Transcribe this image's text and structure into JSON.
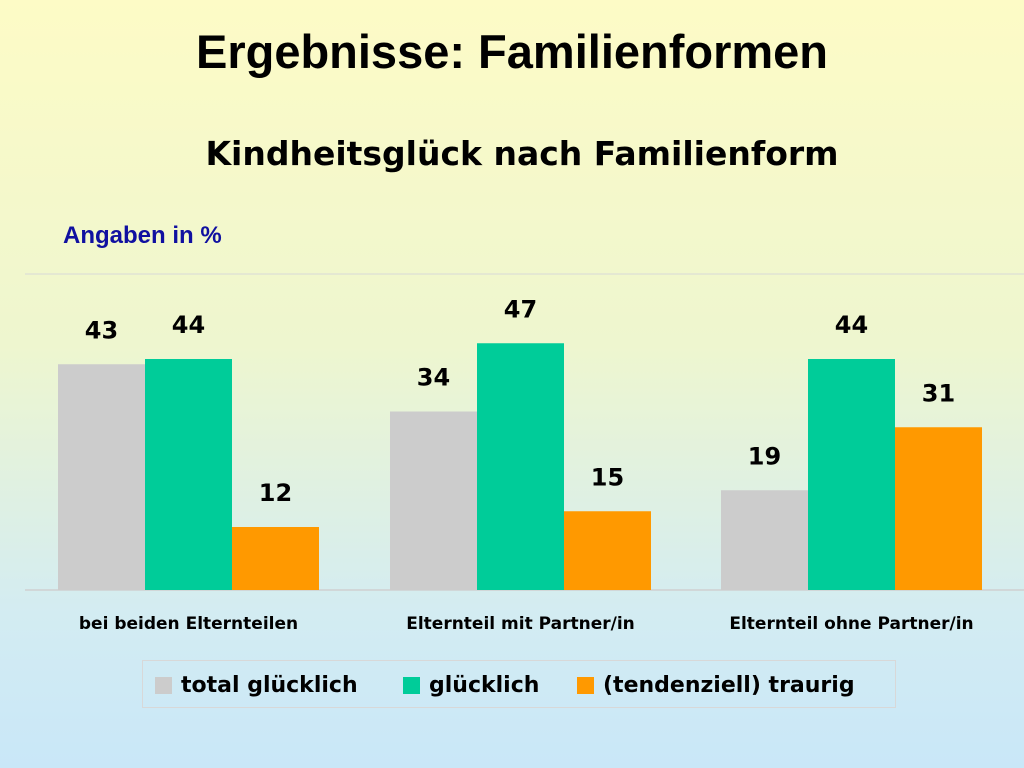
{
  "title": "Ergebnisse: Familienformen",
  "chart_data": {
    "type": "bar",
    "title": "Kindheitsglück nach Familienform",
    "subtitle": "Angaben in %",
    "xlabel": "",
    "ylabel": "",
    "ylim": [
      0,
      60
    ],
    "grid": false,
    "legend_position": "bottom",
    "categories": [
      "bei beiden Elternteilen",
      "Elternteil mit Partner/in",
      "Elternteil ohne Partner/in"
    ],
    "series": [
      {
        "name": "total glücklich",
        "color": "#cccccc",
        "values": [
          43,
          34,
          19
        ]
      },
      {
        "name": "glücklich",
        "color": "#00cc99",
        "values": [
          44,
          47,
          44
        ]
      },
      {
        "name": "(tendenziell) traurig",
        "color": "#ff9900",
        "values": [
          12,
          15,
          31
        ]
      }
    ]
  }
}
